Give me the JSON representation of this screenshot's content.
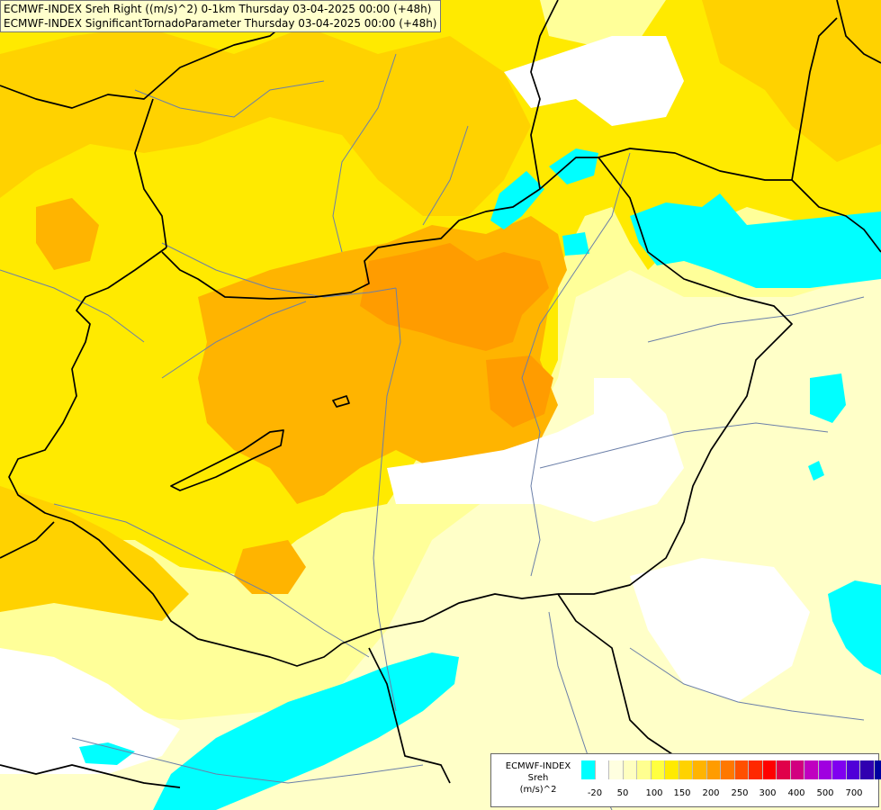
{
  "header": {
    "line1": "ECMWF-INDEX Sreh Right ((m/s)^2) 0-1km Thursday 03-04-2025 00:00 (+48h)",
    "line2": "ECMWF-INDEX SignificantTornadoParameter Thursday 03-04-2025 00:00 (+48h)"
  },
  "legend": {
    "line1": "ECMWF-INDEX",
    "line2": "Sreh",
    "line3": "(m/s)^2",
    "colors": [
      "#00ffff",
      "#ffffff",
      "#ffffe0",
      "#ffffc0",
      "#ffff90",
      "#ffff40",
      "#ffea00",
      "#ffd200",
      "#ffb400",
      "#ff9c00",
      "#ff7800",
      "#ff5000",
      "#ff2800",
      "#ff0000",
      "#e0004a",
      "#d20080",
      "#c000c0",
      "#a000e0",
      "#8000f0",
      "#5000d8",
      "#3000b0",
      "#0000a0"
    ],
    "ticks": [
      "-20",
      "50",
      "100",
      "150",
      "200",
      "250",
      "300",
      "400",
      "500",
      "700"
    ]
  },
  "map_colors": {
    "cyan": "#00ffff",
    "white": "#ffffff",
    "pale": "#ffffc8",
    "lightyellow": "#ffff99",
    "yellow": "#ffea00",
    "gold": "#ffd200",
    "orange": "#ffb400",
    "darkorange": "#ff9c00"
  }
}
